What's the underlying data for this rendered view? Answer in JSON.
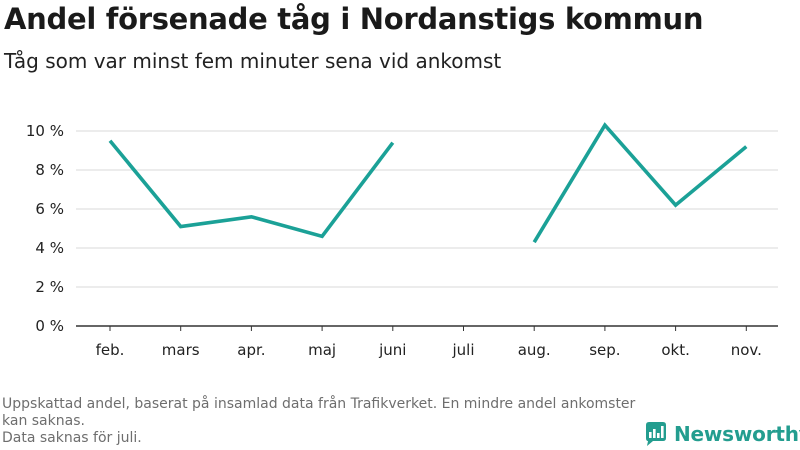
{
  "header": {
    "title": "Andel försenade tåg i Nordanstigs kommun",
    "subtitle": "Tåg som var minst fem minuter sena vid ankomst"
  },
  "chart_data": {
    "type": "line",
    "categories": [
      "feb.",
      "mars",
      "apr.",
      "maj",
      "juni",
      "juli",
      "aug.",
      "sep.",
      "okt.",
      "nov."
    ],
    "series": [
      {
        "values": [
          9.5,
          5.1,
          5.6,
          4.6,
          9.4,
          null,
          4.3,
          10.3,
          6.2,
          9.2
        ]
      }
    ],
    "ylim": [
      0,
      10
    ],
    "yticks": [
      0,
      2,
      4,
      6,
      8,
      10
    ],
    "ytick_labels": [
      "0 %",
      "2 %",
      "4 %",
      "6 %",
      "8 %",
      "10 %"
    ],
    "grid": true,
    "line_color": "#1ba197"
  },
  "footnote": {
    "line1": "Uppskattad andel, baserat på insamlad data från Trafikverket. En mindre andel ankomster kan saknas.",
    "line2": "Data saknas för juli."
  },
  "logo": {
    "text": "Newsworthy",
    "icon": "newsworthy-logo-icon",
    "color": "#239d8f"
  }
}
